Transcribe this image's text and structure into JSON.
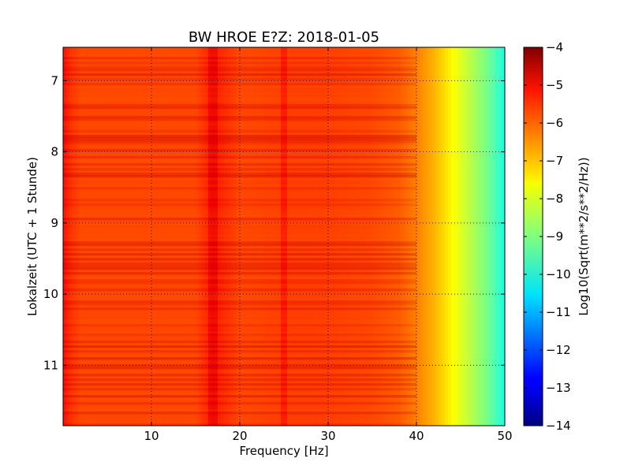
{
  "chart_data": {
    "type": "heatmap",
    "title": "BW HROE E?Z: 2018-01-05",
    "xlabel": "Frequency [Hz]",
    "ylabel": "Lokalzeit (UTC + 1 Stunde)",
    "xlim": [
      0,
      50
    ],
    "ylim": [
      11.85,
      6.53
    ],
    "x_ticks": [
      10,
      20,
      30,
      40,
      50
    ],
    "y_ticks": [
      7,
      8,
      9,
      10,
      11
    ],
    "grid": true,
    "colorbar": {
      "label": "Log10(Sqrt(m**2/s**2/Hz))",
      "range": [
        -14,
        -4
      ],
      "ticks": [
        -4,
        -5,
        -6,
        -7,
        -8,
        -9,
        -10,
        -11,
        -12,
        -13,
        -14
      ],
      "tick_labels": [
        "−4",
        "−5",
        "−6",
        "−7",
        "−8",
        "−9",
        "−10",
        "−11",
        "−12",
        "−13",
        "−14"
      ],
      "colormap": "jet"
    },
    "frequency_profile": {
      "frequency_hz": [
        0,
        1,
        2,
        5,
        10,
        15,
        17,
        20,
        25,
        30,
        35,
        38,
        40,
        42,
        44,
        46,
        48,
        50
      ],
      "log10_amplitude": [
        -5.3,
        -5.7,
        -5.9,
        -5.9,
        -5.9,
        -5.9,
        -5.4,
        -5.9,
        -5.8,
        -5.8,
        -5.9,
        -6.1,
        -6.5,
        -7.0,
        -7.7,
        -8.4,
        -9.1,
        -10.0
      ]
    },
    "strong_lines_hz": [
      17,
      25
    ],
    "colors": {
      "low": "#00007f",
      "mid": "#7fff7f",
      "high": "#7f0000"
    }
  }
}
